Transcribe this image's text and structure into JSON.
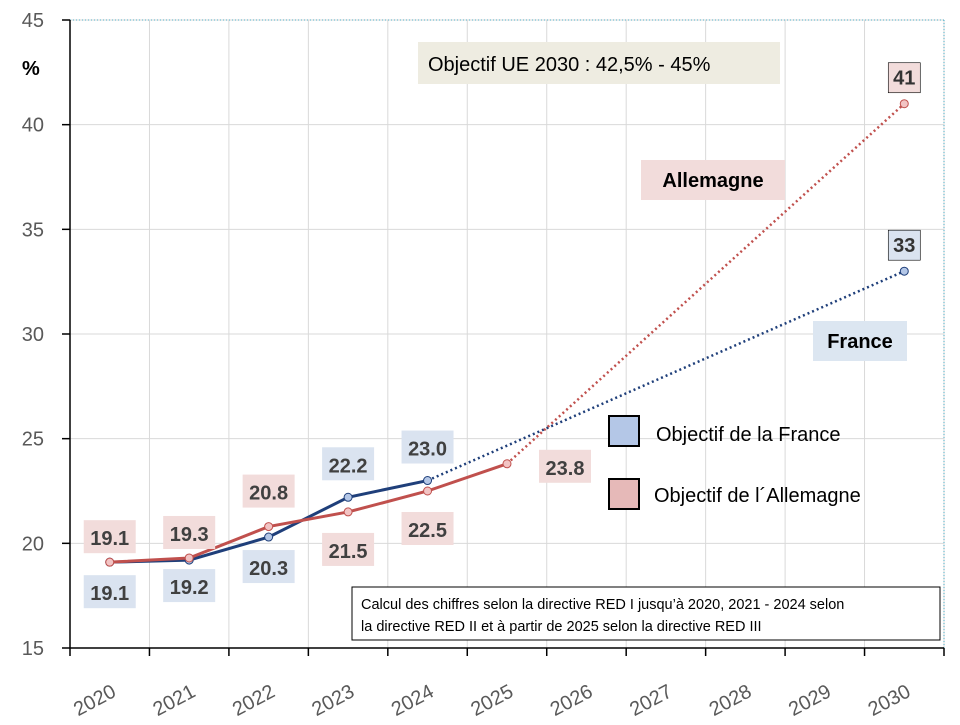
{
  "chart_data": {
    "type": "line",
    "ylabel": "%",
    "ylim": [
      15,
      45
    ],
    "yticks": [
      15,
      20,
      25,
      30,
      35,
      40,
      45
    ],
    "categories": [
      "2020",
      "2021",
      "2022",
      "2023",
      "2024",
      "2025",
      "2026",
      "2027",
      "2028",
      "2029",
      "2030"
    ],
    "grid": true,
    "series": [
      {
        "name": "France",
        "color": "#1F3F7A",
        "marker_fill": "#B4C7E7",
        "label_bg": "#DAE3F0",
        "actual": {
          "x": [
            "2020",
            "2021",
            "2022",
            "2023",
            "2024"
          ],
          "values": [
            19.1,
            19.2,
            20.3,
            22.2,
            23.0
          ],
          "labels": [
            "19.1",
            "19.2",
            "20.3",
            "22.2",
            "23.0"
          ]
        },
        "target": {
          "x": [
            "2024",
            "2030"
          ],
          "values": [
            23.0,
            33
          ],
          "label": "33"
        }
      },
      {
        "name": "Allemagne",
        "color": "#C0504D",
        "marker_fill": "#F2C4C4",
        "label_bg": "#F2DCDB",
        "actual": {
          "x": [
            "2020",
            "2021",
            "2022",
            "2023",
            "2024",
            "2025"
          ],
          "values": [
            19.1,
            19.3,
            20.8,
            21.5,
            22.5,
            23.8
          ],
          "labels": [
            "19.1",
            "19.3",
            "20.8",
            "21.5",
            "22.5",
            "23.8"
          ]
        },
        "target": {
          "x": [
            "2025",
            "2030"
          ],
          "values": [
            23.8,
            41
          ],
          "label": "41"
        }
      }
    ],
    "annotations": {
      "eu_target": "Objectif UE 2030 : 42,5% - 45%",
      "germany_label": "Allemagne",
      "france_label": "France",
      "note_line1": "Calcul des chiffres selon la directive RED I jusqu’à 2020, 2021 - 2024 selon",
      "note_line2": "la directive RED II et à partir de 2025 selon la directive RED III"
    },
    "legend": [
      {
        "label": "Objectif de la France",
        "color": "#B4C7E7"
      },
      {
        "label": "Objectif de l´Allemagne",
        "color": "#E6B9B8"
      }
    ]
  }
}
